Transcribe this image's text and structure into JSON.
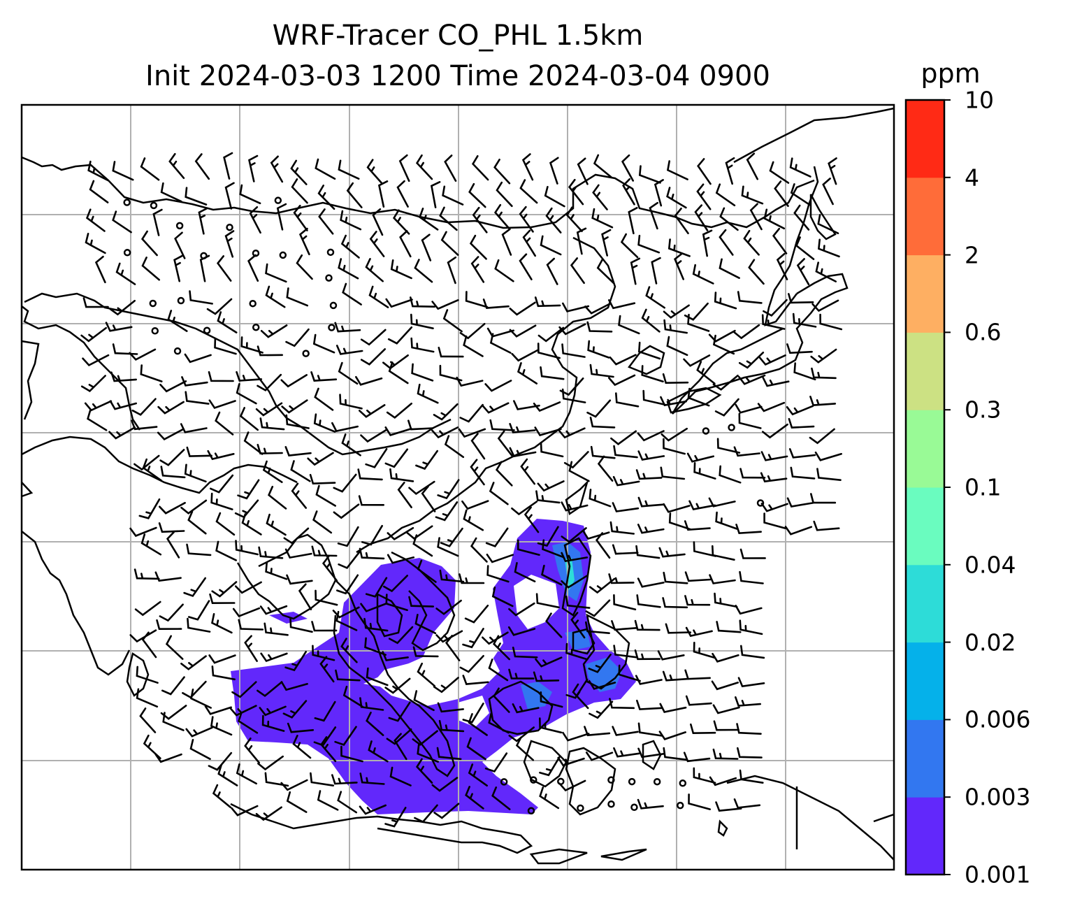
{
  "title": {
    "line1": "WRF-Tracer CO_PHL 1.5km",
    "line2": "Init 2024-03-03 1200 Time 2024-03-04 0900"
  },
  "colorbar": {
    "unit": "ppm",
    "levels": [
      "0.001",
      "0.003",
      "0.006",
      "0.02",
      "0.04",
      "0.1",
      "0.3",
      "0.6",
      "2",
      "4",
      "10"
    ],
    "colors": [
      "#6228fb",
      "#3277f0",
      "#05b1ea",
      "#2ddcd8",
      "#6afcbf",
      "#99fa96",
      "#cce183",
      "#feaf62",
      "#ff6c39",
      "#ff2a15"
    ]
  },
  "map": {
    "field": "CO tracer concentration",
    "gridlines": true,
    "overlay": "wind barbs",
    "frame_color": "#000000",
    "grid_color": "#b0b0b0"
  }
}
